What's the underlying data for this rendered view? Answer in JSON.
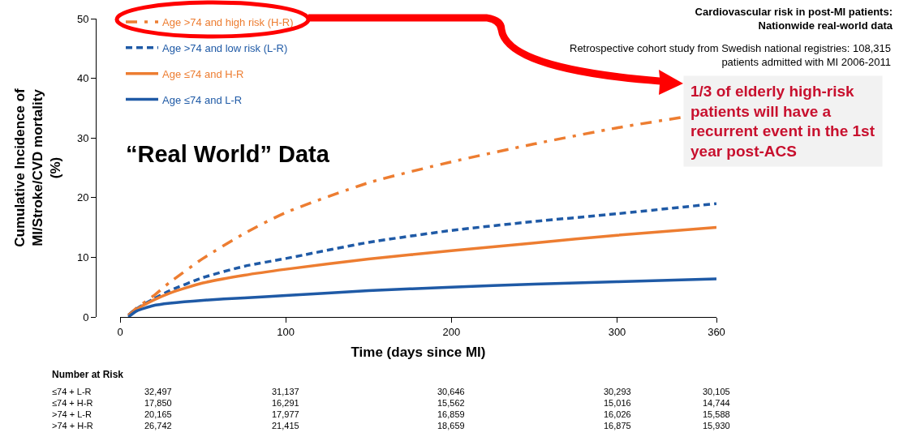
{
  "chart_data": {
    "type": "line",
    "title": "Cardiovascular risk in post-MI patients: Nationwide real-world data",
    "xlabel": "Time (days since MI)",
    "ylabel": "Cumulative Incidence of MI/Stroke/CVD mortality (%)",
    "xlim": [
      0,
      360
    ],
    "xticks": [
      0,
      100,
      200,
      300,
      360
    ],
    "ylim": [
      0,
      50
    ],
    "yticks": [
      0,
      10,
      20,
      30,
      40,
      50
    ],
    "grid": false,
    "legend": "top left",
    "marker": "none",
    "series": [
      {
        "name": "Age >74 and high risk (H-R)",
        "color": "#ed7d31",
        "line_style": "dashdot",
        "x": [
          5,
          10,
          20,
          30,
          50,
          75,
          100,
          150,
          200,
          250,
          300,
          340
        ],
        "values": [
          0.3,
          1.5,
          3.5,
          5.8,
          9.8,
          14,
          17.5,
          22.5,
          26,
          29,
          31.7,
          33.5
        ]
      },
      {
        "name": "Age >74 and low risk (L-R)",
        "color": "#1f5aa6",
        "line_style": "dashed",
        "x": [
          5,
          10,
          20,
          30,
          50,
          75,
          100,
          150,
          200,
          250,
          300,
          360
        ],
        "values": [
          0.3,
          1.4,
          3,
          4.4,
          6.6,
          8.5,
          9.8,
          12.5,
          14.5,
          16,
          17.3,
          19
        ]
      },
      {
        "name": "Age ≤74 and H-R",
        "color": "#ed7d31",
        "line_style": "solid",
        "x": [
          5,
          10,
          20,
          30,
          50,
          75,
          100,
          150,
          200,
          250,
          300,
          360
        ],
        "values": [
          0.3,
          1.3,
          2.8,
          4,
          5.7,
          7,
          8,
          9.7,
          11.1,
          12.4,
          13.7,
          15
        ]
      },
      {
        "name": "Age ≤74 and L-R",
        "color": "#1f5aa6",
        "line_style": "solid",
        "x": [
          5,
          10,
          20,
          30,
          50,
          75,
          100,
          150,
          200,
          250,
          300,
          360
        ],
        "values": [
          0,
          1,
          1.9,
          2.3,
          2.8,
          3.2,
          3.6,
          4.4,
          5,
          5.5,
          5.9,
          6.4
        ]
      }
    ],
    "annotations": [
      "“Real World” Data",
      "Retrospective cohort study from Swedish national registries: 108,315 patients admitted with MI 2006-2011",
      "1/3 of elderly high-risk patients will have a recurrent event in the 1st year post-ACS",
      "Number at Risk",
      "≤74 + L-R",
      "32,497",
      "31,137",
      "30,646",
      "30,293",
      "30,105",
      "≤74 + H-R",
      "17,850",
      "16,291",
      "15,562",
      "15,016",
      "14,744",
      ">74 + L-R",
      "20,165",
      "17,977",
      "16,859",
      "16,026",
      "15,588",
      ">74 + H-R",
      "26,742",
      "21,415",
      "18,659",
      "16,875",
      "15,930"
    ]
  }
}
